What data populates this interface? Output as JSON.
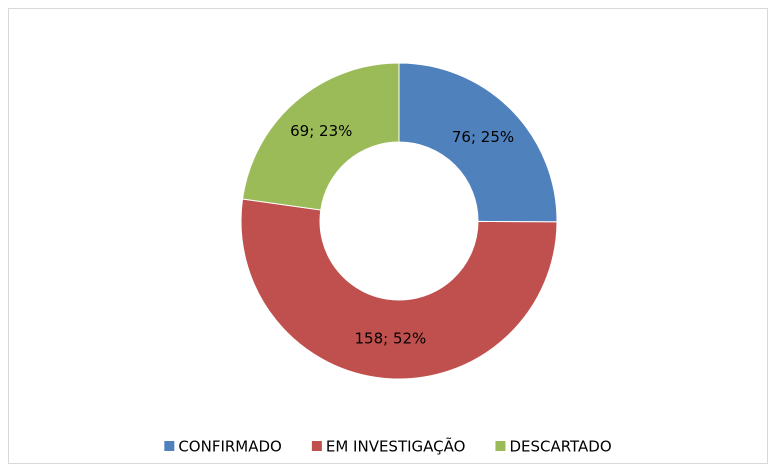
{
  "chart_data": {
    "type": "donut",
    "categories": [
      "CONFIRMADO",
      "EM INVESTIGAÇÃO",
      "DESCARTADO"
    ],
    "values": [
      76,
      158,
      69
    ],
    "value_labels": [
      "76; 25%",
      "158; 52%",
      "69; 23%"
    ],
    "colors": [
      "#4f81bd",
      "#c0504d",
      "#9bbb59"
    ],
    "legend": "bottom"
  }
}
